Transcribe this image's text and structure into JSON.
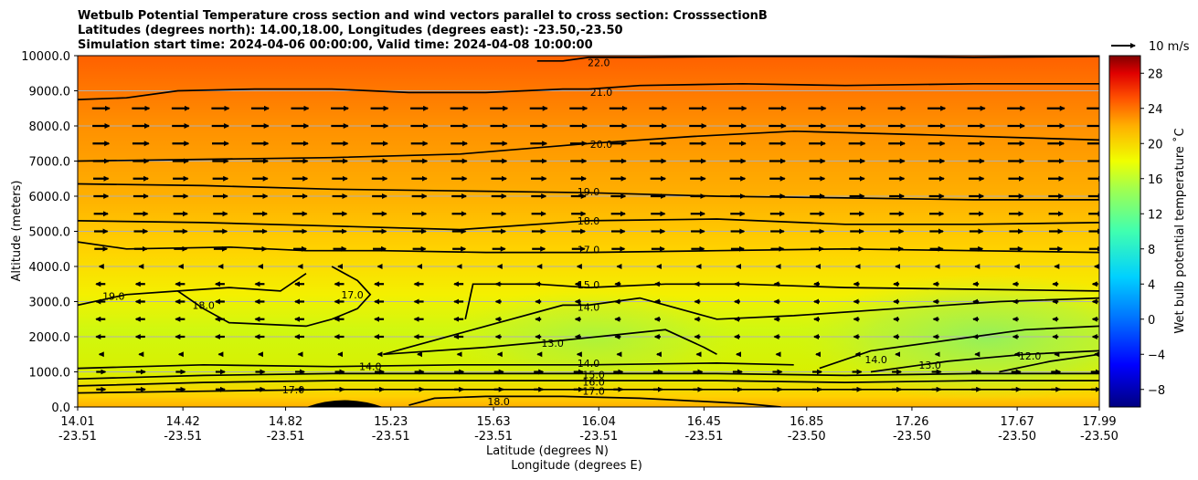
{
  "chart_data": {
    "type": "contour",
    "title_lines": [
      "Wetbulb Potential Temperature cross section and wind vectors parallel to cross section: CrosssectionB",
      "Latitudes (degrees north): 14.00,18.00, Longitudes (degrees east): -23.50,-23.50",
      "Simulation start time: 2024-04-06 00:00:00, Valid time: 2024-04-08 10:00:00"
    ],
    "ylabel": "Altitude (meters)",
    "xlabel_lat": "Latitude (degrees N)",
    "xlabel_lon": "Longitude (degrees E)",
    "xlim": [
      14.01,
      17.99
    ],
    "ylim": [
      0,
      10000
    ],
    "x_ticks": [
      {
        "lat": "14.01",
        "lon": "-23.51",
        "value": 14.01
      },
      {
        "lat": "14.42",
        "lon": "-23.51",
        "value": 14.42
      },
      {
        "lat": "14.82",
        "lon": "-23.51",
        "value": 14.82
      },
      {
        "lat": "15.23",
        "lon": "-23.51",
        "value": 15.23
      },
      {
        "lat": "15.63",
        "lon": "-23.51",
        "value": 15.63
      },
      {
        "lat": "16.04",
        "lon": "-23.51",
        "value": 16.04
      },
      {
        "lat": "16.45",
        "lon": "-23.51",
        "value": 16.45
      },
      {
        "lat": "16.85",
        "lon": "-23.50",
        "value": 16.85
      },
      {
        "lat": "17.26",
        "lon": "-23.50",
        "value": 17.26
      },
      {
        "lat": "17.67",
        "lon": "-23.50",
        "value": 17.67
      },
      {
        "lat": "17.99",
        "lon": "-23.50",
        "value": 17.99
      }
    ],
    "y_ticks": [
      {
        "label": "0.0",
        "value": 0
      },
      {
        "label": "1000.0",
        "value": 1000
      },
      {
        "label": "2000.0",
        "value": 2000
      },
      {
        "label": "3000.0",
        "value": 3000
      },
      {
        "label": "4000.0",
        "value": 4000
      },
      {
        "label": "5000.0",
        "value": 5000
      },
      {
        "label": "6000.0",
        "value": 6000
      },
      {
        "label": "7000.0",
        "value": 7000
      },
      {
        "label": "8000.0",
        "value": 8000
      },
      {
        "label": "9000.0",
        "value": 9000
      },
      {
        "label": "10000.0",
        "value": 10000
      }
    ],
    "colorbar": {
      "label": "Wet bulb potential temperature ˚C",
      "range": [
        -10,
        30
      ],
      "ticks": [
        {
          "label": "−8",
          "value": -8
        },
        {
          "label": "−4",
          "value": -4
        },
        {
          "label": "0",
          "value": 0
        },
        {
          "label": "4",
          "value": 4
        },
        {
          "label": "8",
          "value": 8
        },
        {
          "label": "12",
          "value": 12
        },
        {
          "label": "16",
          "value": 16
        },
        {
          "label": "20",
          "value": 20
        },
        {
          "label": "24",
          "value": 24
        },
        {
          "label": "28",
          "value": 28
        }
      ]
    },
    "quiver_key": "10 m/s",
    "contours": [
      {
        "level": 22.0,
        "label": "22.0",
        "points": [
          [
            15.8,
            9850
          ],
          [
            15.9,
            9850
          ],
          [
            16.0,
            9950
          ],
          [
            16.2,
            9950
          ],
          [
            16.6,
            9980
          ],
          [
            17.0,
            9980
          ],
          [
            17.5,
            9950
          ],
          [
            17.99,
            9980
          ]
        ]
      },
      {
        "level": 21.0,
        "label": "21.0",
        "points": [
          [
            14.01,
            8750
          ],
          [
            14.2,
            8800
          ],
          [
            14.4,
            9000
          ],
          [
            14.7,
            9050
          ],
          [
            15.0,
            9050
          ],
          [
            15.3,
            8950
          ],
          [
            15.6,
            8950
          ],
          [
            15.9,
            9050
          ],
          [
            16.0,
            9050
          ],
          [
            16.2,
            9150
          ],
          [
            16.6,
            9200
          ],
          [
            17.0,
            9150
          ],
          [
            17.5,
            9200
          ],
          [
            17.99,
            9200
          ]
        ]
      },
      {
        "level": 20.0,
        "label": "20.0",
        "points": [
          [
            14.01,
            7000
          ],
          [
            14.5,
            7050
          ],
          [
            15.0,
            7100
          ],
          [
            15.5,
            7200
          ],
          [
            16.0,
            7500
          ],
          [
            16.4,
            7700
          ],
          [
            16.8,
            7850
          ],
          [
            17.3,
            7750
          ],
          [
            17.99,
            7600
          ]
        ]
      },
      {
        "level": 19.0,
        "label": "19.0",
        "points": [
          [
            14.01,
            6350
          ],
          [
            14.5,
            6300
          ],
          [
            15.0,
            6200
          ],
          [
            15.5,
            6150
          ],
          [
            16.0,
            6100
          ],
          [
            16.5,
            6000
          ],
          [
            17.0,
            5950
          ],
          [
            17.5,
            5900
          ],
          [
            17.99,
            5900
          ]
        ]
      },
      {
        "level": 18.0,
        "label": "18.0",
        "points": [
          [
            14.01,
            5300
          ],
          [
            14.5,
            5250
          ],
          [
            15.0,
            5150
          ],
          [
            15.5,
            5050
          ],
          [
            16.0,
            5300
          ],
          [
            16.5,
            5350
          ],
          [
            17.0,
            5200
          ],
          [
            17.5,
            5200
          ],
          [
            17.99,
            5250
          ]
        ]
      },
      {
        "level": 17.0,
        "label": "17.0",
        "points": [
          [
            14.01,
            4700
          ],
          [
            14.2,
            4500
          ],
          [
            14.6,
            4550
          ],
          [
            14.9,
            4450
          ],
          [
            15.2,
            4450
          ],
          [
            15.6,
            4400
          ],
          [
            16.0,
            4400
          ],
          [
            16.5,
            4450
          ],
          [
            17.0,
            4500
          ],
          [
            17.5,
            4450
          ],
          [
            17.99,
            4400
          ]
        ]
      },
      {
        "level": 15.0,
        "label": "15.0",
        "points": [
          [
            15.52,
            2500
          ],
          [
            15.55,
            3500
          ],
          [
            15.8,
            3500
          ],
          [
            16.0,
            3400
          ],
          [
            16.3,
            3500
          ],
          [
            16.6,
            3500
          ],
          [
            17.0,
            3400
          ],
          [
            17.5,
            3350
          ],
          [
            17.99,
            3300
          ]
        ]
      },
      {
        "level": 14.0,
        "label": "14.0",
        "points": [
          [
            15.2,
            1500
          ],
          [
            15.6,
            2300
          ],
          [
            15.9,
            2900
          ],
          [
            16.0,
            2900
          ],
          [
            16.2,
            3100
          ],
          [
            16.35,
            2800
          ],
          [
            16.5,
            2500
          ],
          [
            16.8,
            2600
          ],
          [
            17.2,
            2800
          ],
          [
            17.6,
            3000
          ],
          [
            17.99,
            3100
          ]
        ]
      },
      {
        "level": 13.0,
        "label": "13.0",
        "points": [
          [
            15.2,
            1500
          ],
          [
            15.6,
            1700
          ],
          [
            15.9,
            1900
          ],
          [
            16.1,
            2050
          ],
          [
            16.3,
            2200
          ],
          [
            16.45,
            1700
          ],
          [
            16.5,
            1500
          ]
        ]
      },
      {
        "level": 14.0,
        "label": "14.0",
        "points": [
          [
            14.01,
            1100
          ],
          [
            14.5,
            1200
          ],
          [
            15.0,
            1150
          ],
          [
            15.5,
            1200
          ],
          [
            16.0,
            1200
          ],
          [
            16.5,
            1250
          ],
          [
            16.8,
            1200
          ]
        ]
      },
      {
        "level": 14.0,
        "label": "14.0",
        "points": [
          [
            16.9,
            1100
          ],
          [
            17.1,
            1600
          ],
          [
            17.4,
            1900
          ],
          [
            17.7,
            2200
          ],
          [
            17.99,
            2300
          ]
        ]
      },
      {
        "level": 13.0,
        "label": "13.0",
        "points": [
          [
            17.1,
            1000
          ],
          [
            17.4,
            1300
          ],
          [
            17.7,
            1500
          ],
          [
            17.99,
            1600
          ]
        ]
      },
      {
        "level": 12.0,
        "label": "12.0",
        "points": [
          [
            17.6,
            1000
          ],
          [
            17.8,
            1300
          ],
          [
            17.99,
            1500
          ]
        ]
      },
      {
        "level": 15.0,
        "label": "15.0",
        "points": [
          [
            14.01,
            800
          ],
          [
            14.5,
            900
          ],
          [
            15.0,
            950
          ],
          [
            15.5,
            950
          ],
          [
            16.0,
            950
          ],
          [
            16.5,
            950
          ],
          [
            17.0,
            900
          ],
          [
            17.5,
            950
          ],
          [
            17.99,
            950
          ]
        ]
      },
      {
        "level": 16.0,
        "label": "16.0",
        "points": [
          [
            14.01,
            600
          ],
          [
            14.5,
            700
          ],
          [
            15.0,
            750
          ],
          [
            15.5,
            750
          ],
          [
            16.0,
            750
          ],
          [
            16.5,
            750
          ],
          [
            17.0,
            700
          ],
          [
            17.5,
            750
          ],
          [
            17.99,
            750
          ]
        ]
      },
      {
        "level": 17.0,
        "label": "17.0",
        "points": [
          [
            14.01,
            400
          ],
          [
            14.5,
            450
          ],
          [
            15.0,
            500
          ],
          [
            15.5,
            500
          ],
          [
            16.0,
            500
          ],
          [
            16.5,
            500
          ],
          [
            17.0,
            500
          ],
          [
            17.5,
            500
          ],
          [
            17.99,
            500
          ]
        ]
      },
      {
        "level": 18.0,
        "label": "18.0",
        "points": [
          [
            15.3,
            50
          ],
          [
            15.4,
            250
          ],
          [
            15.6,
            300
          ],
          [
            15.9,
            300
          ],
          [
            16.2,
            250
          ],
          [
            16.6,
            100
          ],
          [
            16.75,
            0
          ]
        ]
      },
      {
        "level": 19.0,
        "label": "19.0",
        "points": [
          [
            14.01,
            2900
          ],
          [
            14.2,
            3200
          ],
          [
            14.4,
            3300
          ],
          [
            14.6,
            3400
          ],
          [
            14.8,
            3300
          ],
          [
            14.9,
            3800
          ]
        ]
      },
      {
        "level": 18.0,
        "label": "18.0",
        "points": [
          [
            14.4,
            3300
          ],
          [
            14.5,
            2800
          ],
          [
            14.6,
            2400
          ],
          [
            14.9,
            2300
          ],
          [
            15.0,
            2500
          ]
        ]
      },
      {
        "level": 17.0,
        "label": "17.0",
        "points": [
          [
            15.0,
            2500
          ],
          [
            15.1,
            2800
          ],
          [
            15.15,
            3200
          ],
          [
            15.1,
            3600
          ],
          [
            15.0,
            4000
          ]
        ]
      }
    ],
    "contour_label_positions": [
      {
        "text": "22.0",
        "x": 16.04,
        "y": 9800
      },
      {
        "text": "21.0",
        "x": 16.05,
        "y": 8960
      },
      {
        "text": "20.0",
        "x": 16.05,
        "y": 7480
      },
      {
        "text": "19.0",
        "x": 16.0,
        "y": 6130
      },
      {
        "text": "18.0",
        "x": 16.0,
        "y": 5300
      },
      {
        "text": "17.0",
        "x": 16.0,
        "y": 4480
      },
      {
        "text": "15.0",
        "x": 16.0,
        "y": 3480
      },
      {
        "text": "14.0",
        "x": 16.0,
        "y": 2850
      },
      {
        "text": "13.0",
        "x": 15.86,
        "y": 1820
      },
      {
        "text": "14.0",
        "x": 16.0,
        "y": 1250
      },
      {
        "text": "15.0",
        "x": 16.02,
        "y": 920
      },
      {
        "text": "16.0",
        "x": 16.02,
        "y": 720
      },
      {
        "text": "17.0",
        "x": 16.02,
        "y": 460
      },
      {
        "text": "14.0",
        "x": 15.15,
        "y": 1150
      },
      {
        "text": "17.0",
        "x": 14.85,
        "y": 500
      },
      {
        "text": "18.0",
        "x": 15.65,
        "y": 150
      },
      {
        "text": "14.0",
        "x": 17.12,
        "y": 1350
      },
      {
        "text": "13.0",
        "x": 17.33,
        "y": 1200
      },
      {
        "text": "12.0",
        "x": 17.72,
        "y": 1450
      },
      {
        "text": "19.0",
        "x": 14.15,
        "y": 3150
      },
      {
        "text": "18.0",
        "x": 14.5,
        "y": 2900
      },
      {
        "text": "17.0",
        "x": 15.08,
        "y": 3200
      }
    ],
    "terrain": {
      "x": [
        14.9,
        15.05,
        15.2
      ],
      "peak": 180
    }
  }
}
